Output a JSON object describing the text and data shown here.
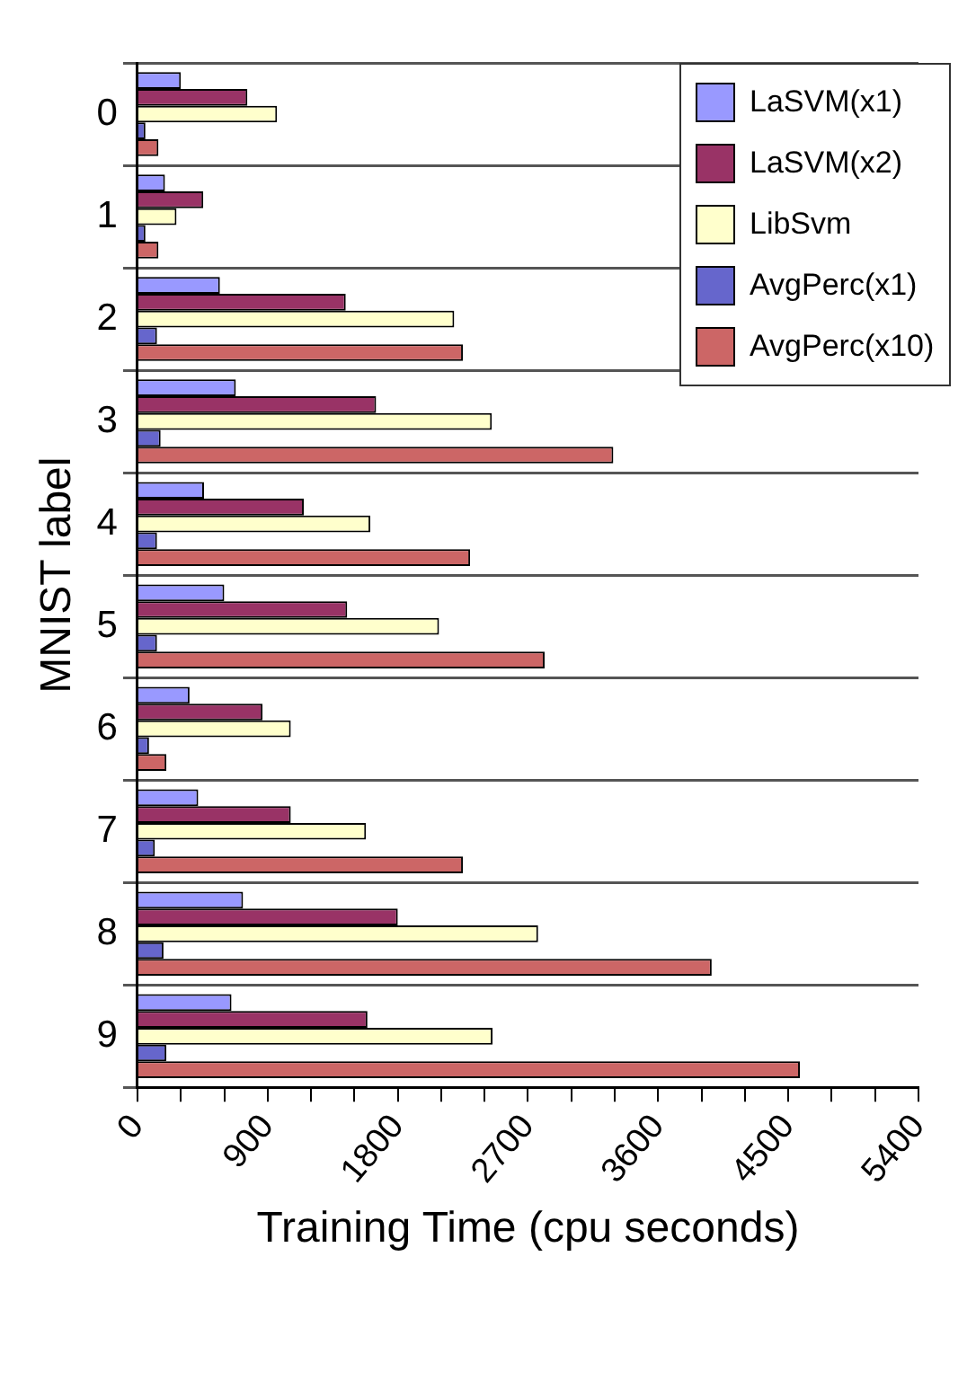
{
  "chart_data": {
    "type": "bar",
    "orientation": "horizontal",
    "xlabel": "Training Time (cpu seconds)",
    "ylabel": "MNIST label",
    "categories": [
      "0",
      "1",
      "2",
      "3",
      "4",
      "5",
      "6",
      "7",
      "8",
      "9"
    ],
    "series": [
      {
        "name": "LaSVM(x1)",
        "color": "#9999ff",
        "values": [
          300,
          190,
          570,
          680,
          460,
          600,
          360,
          420,
          730,
          650
        ]
      },
      {
        "name": "LaSVM(x2)",
        "color": "#993366",
        "values": [
          760,
          455,
          1440,
          1650,
          1150,
          1450,
          865,
          1060,
          1800,
          1590
        ]
      },
      {
        "name": "LibSvm",
        "color": "#ffffcc",
        "values": [
          965,
          270,
          2190,
          2450,
          1610,
          2085,
          1060,
          1580,
          2770,
          2455
        ]
      },
      {
        "name": "AvgPerc(x1)",
        "color": "#6666cc",
        "values": [
          55,
          55,
          135,
          160,
          135,
          135,
          80,
          120,
          180,
          200
        ]
      },
      {
        "name": "AvgPerc(x10)",
        "color": "#cc6666",
        "values": [
          145,
          145,
          2250,
          3290,
          2300,
          2815,
          200,
          2250,
          3970,
          4580
        ]
      }
    ],
    "xlim": [
      0,
      5400
    ],
    "xticks": [
      0,
      {
        "value": 300,
        "label": null
      },
      {
        "value": 600,
        "label": null
      },
      900,
      {
        "value": 1200,
        "label": null
      },
      {
        "value": 1500,
        "label": null
      },
      1800,
      {
        "value": 2100,
        "label": null
      },
      {
        "value": 2400,
        "label": null
      },
      2700,
      {
        "value": 3000,
        "label": null
      },
      {
        "value": 3300,
        "label": null
      },
      3600,
      {
        "value": 3900,
        "label": null
      },
      {
        "value": 4200,
        "label": null
      },
      4500,
      {
        "value": 4800,
        "label": null
      },
      {
        "value": 5100,
        "label": null
      },
      5400
    ],
    "grid": "y",
    "legend": "top right"
  }
}
